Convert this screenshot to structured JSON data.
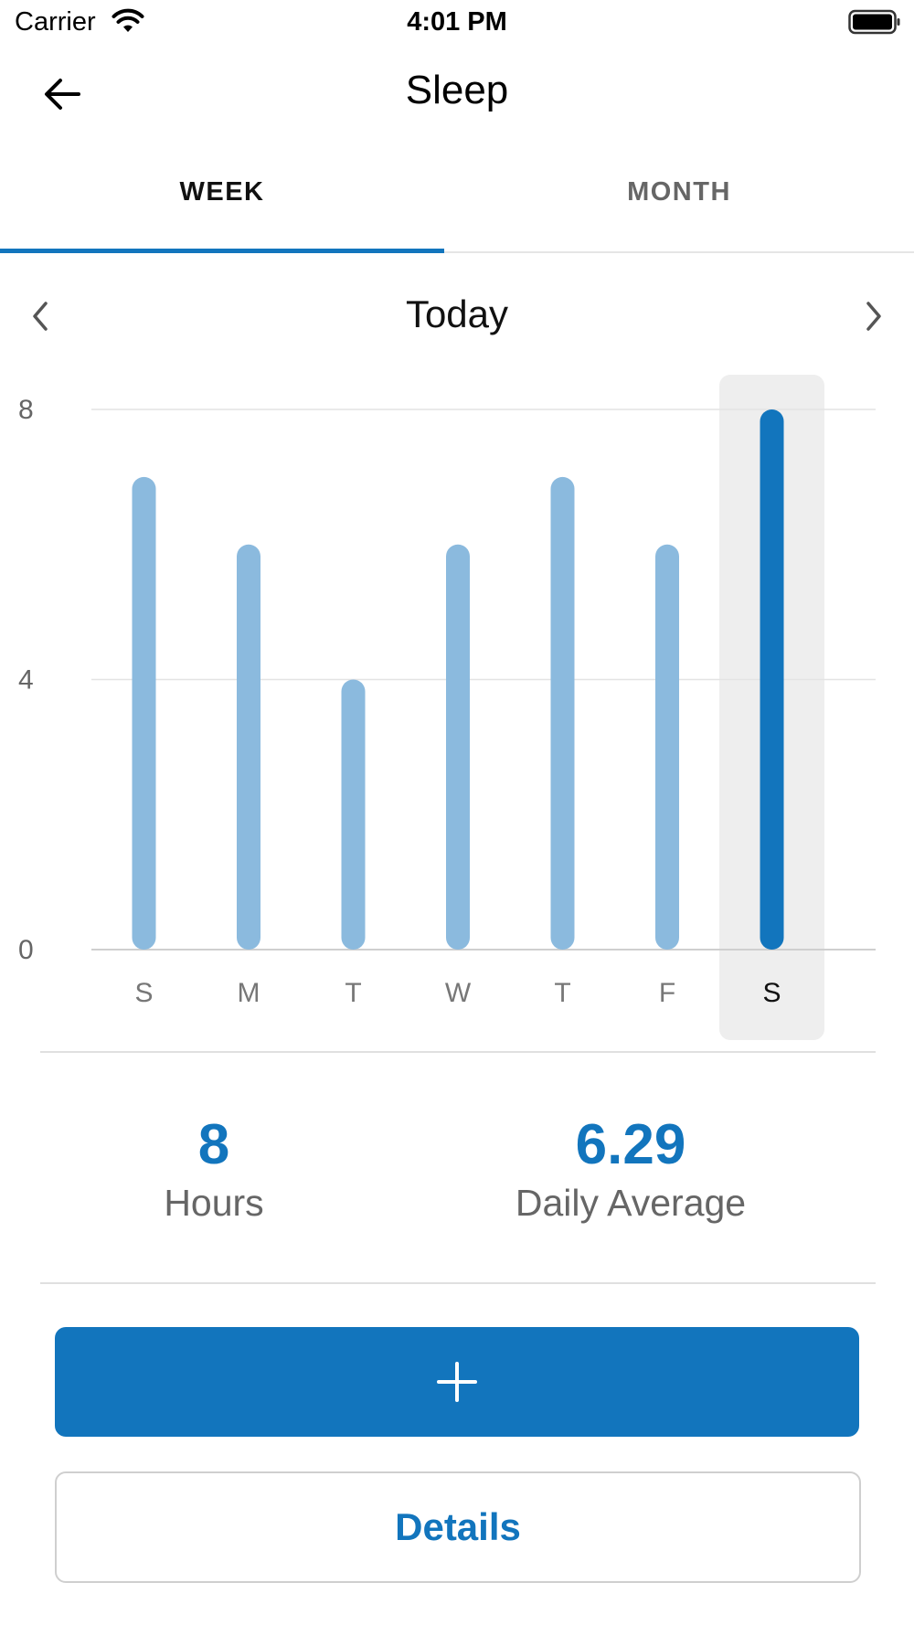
{
  "status_bar": {
    "carrier": "Carrier",
    "time": "4:01 PM",
    "wifi_icon": "wifi-icon",
    "battery_icon": "battery-icon"
  },
  "header": {
    "title": "Sleep",
    "back_icon": "arrow-left-icon"
  },
  "tabs": [
    {
      "label": "WEEK",
      "selected": true
    },
    {
      "label": "MONTH",
      "selected": false
    }
  ],
  "period": {
    "label": "Today",
    "prev_icon": "chevron-left-icon",
    "next_icon": "chevron-right-icon"
  },
  "chart_data": {
    "type": "bar",
    "categories": [
      "S",
      "M",
      "T",
      "W",
      "T",
      "F",
      "S"
    ],
    "values": [
      7,
      6,
      4,
      6,
      7,
      6,
      8
    ],
    "selected_index": 6,
    "ylim": [
      0,
      8
    ],
    "y_ticks": [
      "0",
      "4",
      "8"
    ],
    "grid": true,
    "colors": {
      "bar": "#8bbade",
      "bar_selected": "#1275bd",
      "highlight_bg": "#eeeeee"
    }
  },
  "stats": {
    "hours_value": "8",
    "hours_label": "Hours",
    "average_value": "6.29",
    "average_label": "Daily Average"
  },
  "actions": {
    "add_icon": "plus-icon",
    "details_label": "Details"
  },
  "colors": {
    "accent": "#1275bd"
  }
}
